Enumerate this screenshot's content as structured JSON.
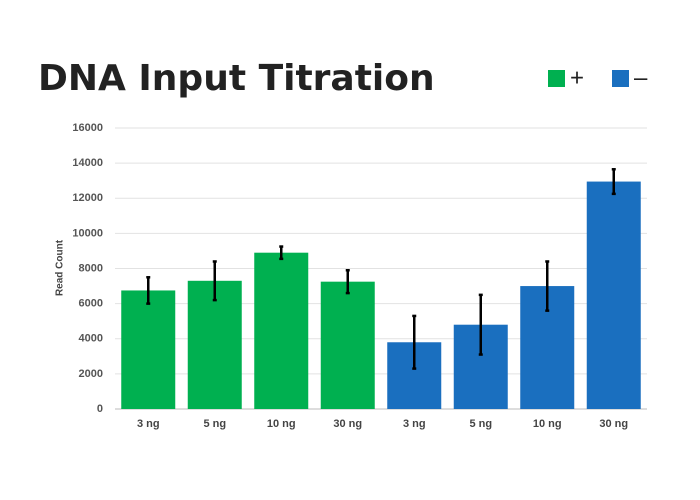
{
  "chart_data": {
    "type": "bar",
    "title": "DNA Input Titration",
    "y_label": "Read Count",
    "categories": [
      "3 ng",
      "5 ng",
      "10 ng",
      "30 ng",
      "3 ng",
      "5 ng",
      "10 ng",
      "30 ng"
    ],
    "series": [
      {
        "name": "+",
        "color": "#00b050",
        "values": [
          6750,
          7300,
          8900,
          7250,
          null,
          null,
          null,
          null
        ],
        "errors": [
          750,
          1100,
          350,
          650,
          null,
          null,
          null,
          null
        ]
      },
      {
        "name": "–",
        "color": "#1a6fbf",
        "values": [
          null,
          null,
          null,
          null,
          3800,
          4800,
          7000,
          12950
        ],
        "errors": [
          null,
          null,
          null,
          null,
          1500,
          1700,
          1400,
          700
        ]
      }
    ],
    "ylim": [
      0,
      16000
    ],
    "yticks": [
      0,
      2000,
      4000,
      6000,
      8000,
      10000,
      12000,
      14000,
      16000
    ],
    "grid": true,
    "legend": "top-right"
  }
}
